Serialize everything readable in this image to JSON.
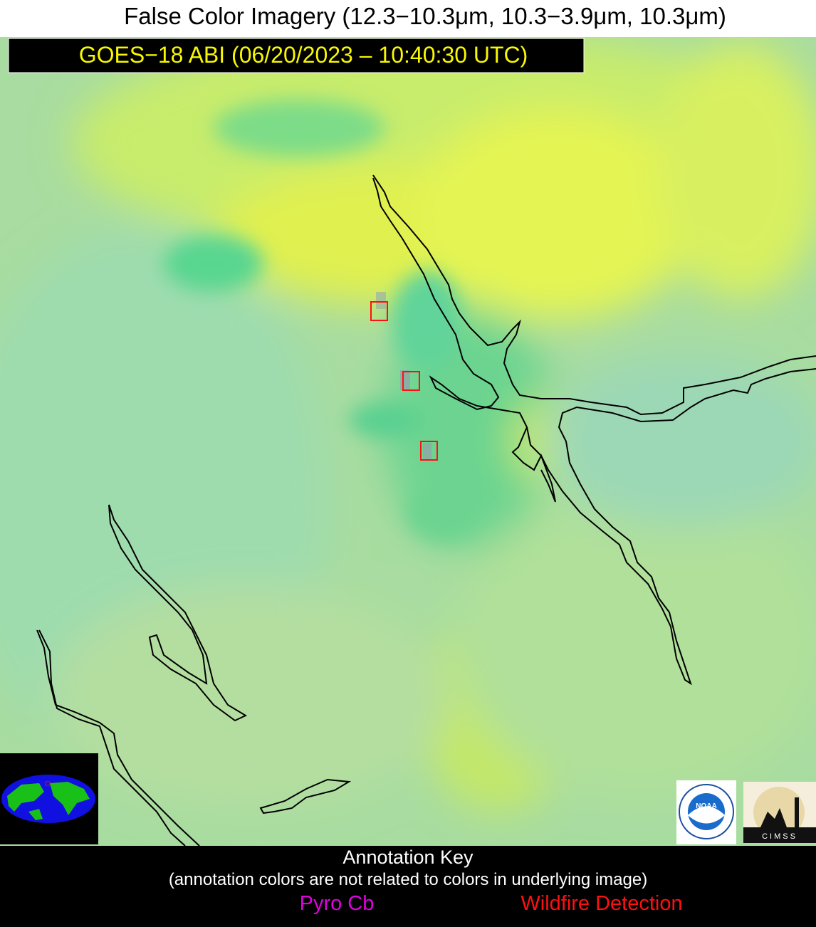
{
  "header": {
    "title": "False Color Imagery (12.3−10.3μm, 10.3−3.9μm, 10.3μm)",
    "subtitle": "GOES−18 ABI (06/20/2023 – 10:40:30 UTC)"
  },
  "annotation_key": {
    "title": "Annotation Key",
    "note": "(annotation colors are not related to colors in underlying image)",
    "items": [
      {
        "label": "Pyro Cb",
        "color": "#e000e0"
      },
      {
        "label": "Wildfire Detection",
        "color": "#ff1010"
      }
    ]
  },
  "logos": {
    "noaa": "NOAA",
    "cimss": "CIMSS"
  }
}
